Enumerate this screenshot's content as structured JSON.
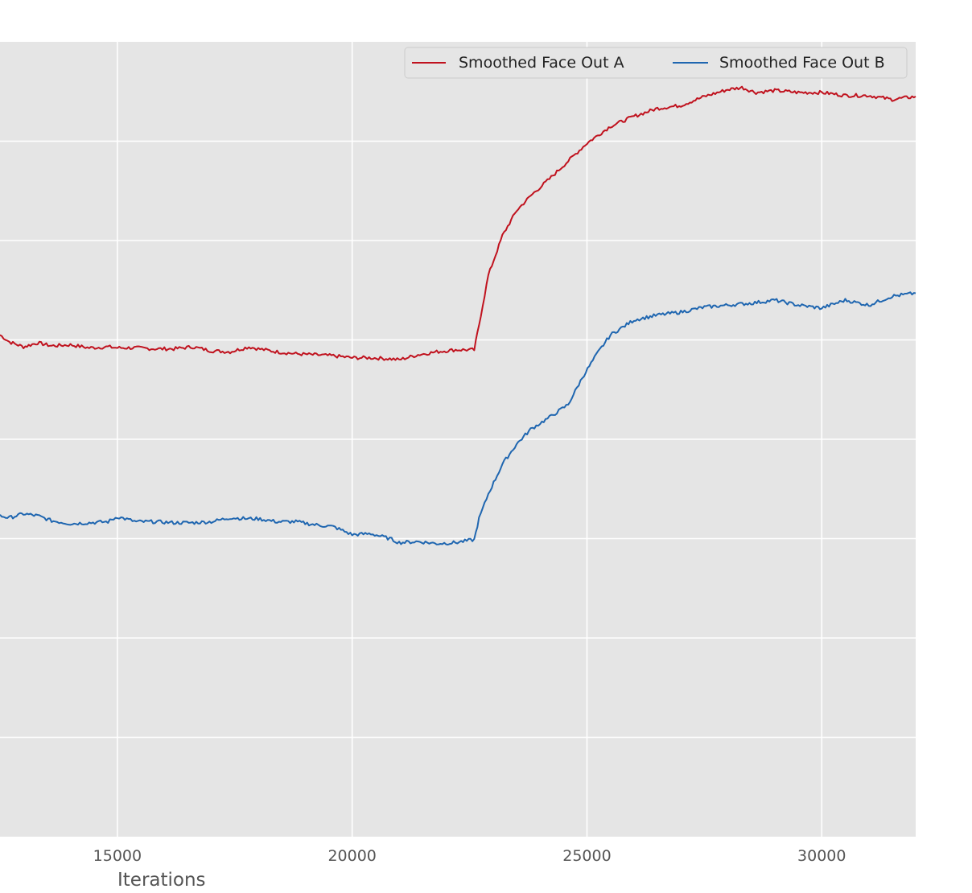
{
  "chart_data": {
    "type": "line",
    "title": "",
    "xlabel": "Iterations",
    "ylabel": "",
    "xlim": [
      12500,
      32000
    ],
    "ylim": [
      0,
      8
    ],
    "x_ticks": [
      15000,
      20000,
      25000,
      30000
    ],
    "x_tick_labels": [
      "15000",
      "20000",
      "25000",
      "30000"
    ],
    "y_gridlines": [
      1,
      2,
      3,
      4,
      5,
      6,
      7
    ],
    "grid": true,
    "legend": "top-right",
    "background": "#e5e5e5",
    "grid_color": "#ffffff",
    "series": [
      {
        "name": "Smoothed Face Out A",
        "color": "#c0121e",
        "x": [
          12500,
          12700,
          13000,
          13300,
          13600,
          14000,
          14400,
          14800,
          15000,
          15400,
          15800,
          16200,
          16600,
          17000,
          17400,
          17800,
          18000,
          18400,
          18800,
          19200,
          19600,
          20000,
          20400,
          20800,
          21000,
          21400,
          21800,
          22200,
          22600,
          22700,
          22900,
          23200,
          23500,
          23800,
          24200,
          24600,
          25000,
          25500,
          26000,
          26500,
          27000,
          27500,
          28000,
          28300,
          28600,
          29000,
          29500,
          30000,
          30500,
          31000,
          31500,
          32000
        ],
        "y": [
          5.05,
          4.98,
          4.93,
          4.97,
          4.94,
          4.95,
          4.92,
          4.93,
          4.92,
          4.92,
          4.91,
          4.91,
          4.93,
          4.89,
          4.88,
          4.93,
          4.91,
          4.88,
          4.86,
          4.85,
          4.84,
          4.82,
          4.82,
          4.81,
          4.8,
          4.85,
          4.88,
          4.9,
          4.9,
          5.15,
          5.65,
          6.05,
          6.3,
          6.45,
          6.62,
          6.8,
          6.98,
          7.15,
          7.25,
          7.33,
          7.36,
          7.45,
          7.52,
          7.54,
          7.49,
          7.51,
          7.49,
          7.49,
          7.46,
          7.46,
          7.42,
          7.45
        ]
      },
      {
        "name": "Smoothed Face Out B",
        "color": "#1f66b0",
        "x": [
          12500,
          12700,
          13000,
          13300,
          13600,
          14000,
          14400,
          14800,
          15000,
          15400,
          15800,
          16200,
          16600,
          17000,
          17400,
          17800,
          18000,
          18400,
          18800,
          19200,
          19600,
          20000,
          20400,
          20800,
          21000,
          21400,
          21800,
          22200,
          22600,
          22700,
          22900,
          23200,
          23500,
          23800,
          24200,
          24600,
          24900,
          25200,
          25500,
          26000,
          26500,
          27000,
          27500,
          28000,
          28500,
          29000,
          29500,
          30000,
          30500,
          31000,
          31500,
          32000
        ],
        "y": [
          3.23,
          3.21,
          3.25,
          3.23,
          3.18,
          3.15,
          3.16,
          3.17,
          3.22,
          3.17,
          3.17,
          3.16,
          3.16,
          3.17,
          3.21,
          3.2,
          3.2,
          3.17,
          3.17,
          3.14,
          3.12,
          3.04,
          3.05,
          3.0,
          2.96,
          2.97,
          2.95,
          2.96,
          2.99,
          3.2,
          3.45,
          3.75,
          3.95,
          4.1,
          4.22,
          4.35,
          4.62,
          4.85,
          5.05,
          5.2,
          5.25,
          5.28,
          5.33,
          5.35,
          5.37,
          5.4,
          5.35,
          5.32,
          5.4,
          5.35,
          5.44,
          5.47
        ]
      }
    ]
  }
}
